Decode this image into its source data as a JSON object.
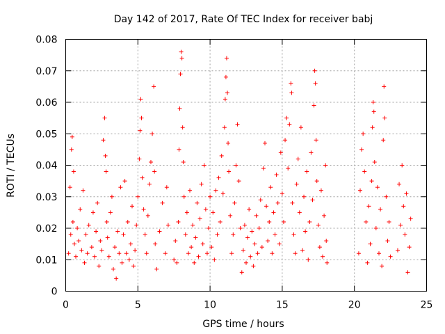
{
  "chart_data": {
    "type": "scatter",
    "title": "Day 142 of 2017, Rate Of TEC Index for receiver babj",
    "xlabel": "GPS time / hours",
    "ylabel": "ROTI / TECUs",
    "xlim": [
      0,
      25
    ],
    "ylim": [
      0,
      0.08
    ],
    "xticks": [
      "0",
      "5",
      "10",
      "15",
      "20",
      "25"
    ],
    "xtick_values": [
      0,
      5,
      10,
      15,
      20,
      25
    ],
    "yticks": [
      "0",
      "0.01",
      "0.02",
      "0.03",
      "0.04",
      "0.05",
      "0.06",
      "0.07",
      "0.08"
    ],
    "ytick_values": [
      0,
      0.01,
      0.02,
      0.03,
      0.04,
      0.05,
      0.06,
      0.07,
      0.08
    ],
    "grid": true,
    "marker": "plus",
    "color": "#ff0000",
    "series": [
      {
        "points": [
          [
            0.2,
            0.012
          ],
          [
            0.3,
            0.033
          ],
          [
            0.35,
            0.018
          ],
          [
            0.4,
            0.045
          ],
          [
            0.45,
            0.049
          ],
          [
            0.5,
            0.022
          ],
          [
            0.55,
            0.038
          ],
          [
            0.6,
            0.015
          ],
          [
            0.7,
            0.011
          ],
          [
            0.8,
            0.02
          ],
          [
            0.9,
            0.016
          ],
          [
            1.0,
            0.026
          ],
          [
            1.1,
            0.013
          ],
          [
            1.2,
            0.032
          ],
          [
            1.3,
            0.009
          ],
          [
            1.4,
            0.018
          ],
          [
            1.5,
            0.012
          ],
          [
            1.6,
            0.021
          ],
          [
            1.8,
            0.014
          ],
          [
            1.9,
            0.025
          ],
          [
            2.0,
            0.011
          ],
          [
            2.1,
            0.019
          ],
          [
            2.2,
            0.028
          ],
          [
            2.3,
            0.008
          ],
          [
            2.4,
            0.016
          ],
          [
            2.5,
            0.013
          ],
          [
            2.6,
            0.048
          ],
          [
            2.7,
            0.055
          ],
          [
            2.75,
            0.043
          ],
          [
            2.8,
            0.038
          ],
          [
            2.85,
            0.022
          ],
          [
            2.9,
            0.017
          ],
          [
            3.0,
            0.011
          ],
          [
            3.1,
            0.025
          ],
          [
            3.2,
            0.03
          ],
          [
            3.3,
            0.007
          ],
          [
            3.4,
            0.014
          ],
          [
            3.5,
            0.004
          ],
          [
            3.6,
            0.019
          ],
          [
            3.7,
            0.012
          ],
          [
            3.8,
            0.033
          ],
          [
            3.9,
            0.009
          ],
          [
            4.0,
            0.018
          ],
          [
            4.1,
            0.035
          ],
          [
            4.2,
            0.012
          ],
          [
            4.3,
            0.022
          ],
          [
            4.4,
            0.01
          ],
          [
            4.5,
            0.015
          ],
          [
            4.6,
            0.027
          ],
          [
            4.7,
            0.008
          ],
          [
            4.8,
            0.013
          ],
          [
            4.9,
            0.021
          ],
          [
            5.0,
            0.03
          ],
          [
            5.1,
            0.042
          ],
          [
            5.15,
            0.051
          ],
          [
            5.2,
            0.061
          ],
          [
            5.25,
            0.055
          ],
          [
            5.3,
            0.036
          ],
          [
            5.4,
            0.026
          ],
          [
            5.5,
            0.018
          ],
          [
            5.6,
            0.012
          ],
          [
            5.7,
            0.024
          ],
          [
            5.8,
            0.034
          ],
          [
            5.9,
            0.041
          ],
          [
            6.0,
            0.05
          ],
          [
            6.1,
            0.065
          ],
          [
            6.15,
            0.038
          ],
          [
            6.2,
            0.015
          ],
          [
            6.3,
            0.007
          ],
          [
            6.5,
            0.019
          ],
          [
            6.7,
            0.028
          ],
          [
            6.9,
            0.012
          ],
          [
            7.0,
            0.033
          ],
          [
            7.1,
            0.021
          ],
          [
            7.5,
            0.01
          ],
          [
            7.6,
            0.016
          ],
          [
            7.7,
            0.009
          ],
          [
            7.8,
            0.022
          ],
          [
            7.85,
            0.045
          ],
          [
            7.9,
            0.058
          ],
          [
            7.95,
            0.069
          ],
          [
            8.0,
            0.076
          ],
          [
            8.05,
            0.074
          ],
          [
            8.1,
            0.052
          ],
          [
            8.15,
            0.041
          ],
          [
            8.2,
            0.03
          ],
          [
            8.3,
            0.018
          ],
          [
            8.4,
            0.025
          ],
          [
            8.5,
            0.012
          ],
          [
            8.6,
            0.032
          ],
          [
            8.7,
            0.014
          ],
          [
            8.8,
            0.021
          ],
          [
            8.9,
            0.009
          ],
          [
            9.0,
            0.017
          ],
          [
            9.1,
            0.028
          ],
          [
            9.2,
            0.011
          ],
          [
            9.3,
            0.023
          ],
          [
            9.4,
            0.034
          ],
          [
            9.5,
            0.015
          ],
          [
            9.6,
            0.04
          ],
          [
            9.7,
            0.026
          ],
          [
            9.8,
            0.012
          ],
          [
            9.9,
            0.02
          ],
          [
            10.0,
            0.03
          ],
          [
            10.1,
            0.014
          ],
          [
            10.2,
            0.025
          ],
          [
            10.3,
            0.01
          ],
          [
            10.4,
            0.032
          ],
          [
            10.5,
            0.018
          ],
          [
            10.6,
            0.036
          ],
          [
            10.7,
            0.022
          ],
          [
            10.8,
            0.043
          ],
          [
            10.9,
            0.031
          ],
          [
            11.0,
            0.052
          ],
          [
            11.05,
            0.061
          ],
          [
            11.1,
            0.068
          ],
          [
            11.15,
            0.074
          ],
          [
            11.2,
            0.063
          ],
          [
            11.25,
            0.047
          ],
          [
            11.3,
            0.038
          ],
          [
            11.4,
            0.024
          ],
          [
            11.5,
            0.012
          ],
          [
            11.6,
            0.018
          ],
          [
            11.7,
            0.028
          ],
          [
            11.8,
            0.04
          ],
          [
            11.9,
            0.053
          ],
          [
            12.0,
            0.035
          ],
          [
            12.1,
            0.02
          ],
          [
            12.2,
            0.006
          ],
          [
            12.3,
            0.013
          ],
          [
            12.4,
            0.021
          ],
          [
            12.5,
            0.009
          ],
          [
            12.6,
            0.017
          ],
          [
            12.7,
            0.026
          ],
          [
            12.8,
            0.011
          ],
          [
            12.9,
            0.019
          ],
          [
            13.0,
            0.008
          ],
          [
            13.1,
            0.015
          ],
          [
            13.2,
            0.024
          ],
          [
            13.3,
            0.012
          ],
          [
            13.4,
            0.02
          ],
          [
            13.5,
            0.029
          ],
          [
            13.6,
            0.014
          ],
          [
            13.7,
            0.039
          ],
          [
            13.8,
            0.047
          ],
          [
            13.9,
            0.027
          ],
          [
            14.0,
            0.016
          ],
          [
            14.1,
            0.022
          ],
          [
            14.2,
            0.033
          ],
          [
            14.3,
            0.012
          ],
          [
            14.4,
            0.025
          ],
          [
            14.5,
            0.018
          ],
          [
            14.6,
            0.037
          ],
          [
            14.7,
            0.028
          ],
          [
            14.8,
            0.015
          ],
          [
            14.9,
            0.044
          ],
          [
            15.0,
            0.031
          ],
          [
            15.1,
            0.022
          ],
          [
            15.2,
            0.048
          ],
          [
            15.3,
            0.055
          ],
          [
            15.4,
            0.039
          ],
          [
            15.5,
            0.053
          ],
          [
            15.6,
            0.066
          ],
          [
            15.65,
            0.063
          ],
          [
            15.7,
            0.028
          ],
          [
            15.8,
            0.018
          ],
          [
            15.9,
            0.012
          ],
          [
            16.0,
            0.034
          ],
          [
            16.1,
            0.042
          ],
          [
            16.2,
            0.025
          ],
          [
            16.3,
            0.052
          ],
          [
            16.4,
            0.013
          ],
          [
            16.5,
            0.03
          ],
          [
            16.6,
            0.019
          ],
          [
            16.7,
            0.038
          ],
          [
            16.8,
            0.01
          ],
          [
            16.9,
            0.022
          ],
          [
            17.0,
            0.044
          ],
          [
            17.1,
            0.029
          ],
          [
            17.2,
            0.059
          ],
          [
            17.25,
            0.07
          ],
          [
            17.3,
            0.066
          ],
          [
            17.35,
            0.048
          ],
          [
            17.4,
            0.035
          ],
          [
            17.5,
            0.021
          ],
          [
            17.6,
            0.014
          ],
          [
            17.7,
            0.032
          ],
          [
            17.8,
            0.011
          ],
          [
            17.9,
            0.024
          ],
          [
            18.0,
            0.04
          ],
          [
            18.05,
            0.016
          ],
          [
            18.1,
            0.009
          ],
          [
            20.3,
            0.012
          ],
          [
            20.4,
            0.032
          ],
          [
            20.5,
            0.045
          ],
          [
            20.6,
            0.05
          ],
          [
            20.7,
            0.038
          ],
          [
            20.8,
            0.022
          ],
          [
            20.9,
            0.009
          ],
          [
            21.0,
            0.027
          ],
          [
            21.1,
            0.015
          ],
          [
            21.2,
            0.035
          ],
          [
            21.25,
            0.052
          ],
          [
            21.3,
            0.06
          ],
          [
            21.35,
            0.057
          ],
          [
            21.4,
            0.041
          ],
          [
            21.5,
            0.02
          ],
          [
            21.6,
            0.033
          ],
          [
            21.7,
            0.012
          ],
          [
            21.8,
            0.026
          ],
          [
            21.9,
            0.008
          ],
          [
            22.0,
            0.048
          ],
          [
            22.05,
            0.065
          ],
          [
            22.1,
            0.055
          ],
          [
            22.2,
            0.03
          ],
          [
            22.3,
            0.016
          ],
          [
            22.4,
            0.022
          ],
          [
            22.5,
            0.011
          ],
          [
            23.0,
            0.013
          ],
          [
            23.1,
            0.034
          ],
          [
            23.2,
            0.021
          ],
          [
            23.3,
            0.04
          ],
          [
            23.4,
            0.027
          ],
          [
            23.5,
            0.018
          ],
          [
            23.6,
            0.031
          ],
          [
            23.7,
            0.006
          ],
          [
            23.8,
            0.014
          ],
          [
            23.9,
            0.023
          ]
        ]
      }
    ]
  }
}
